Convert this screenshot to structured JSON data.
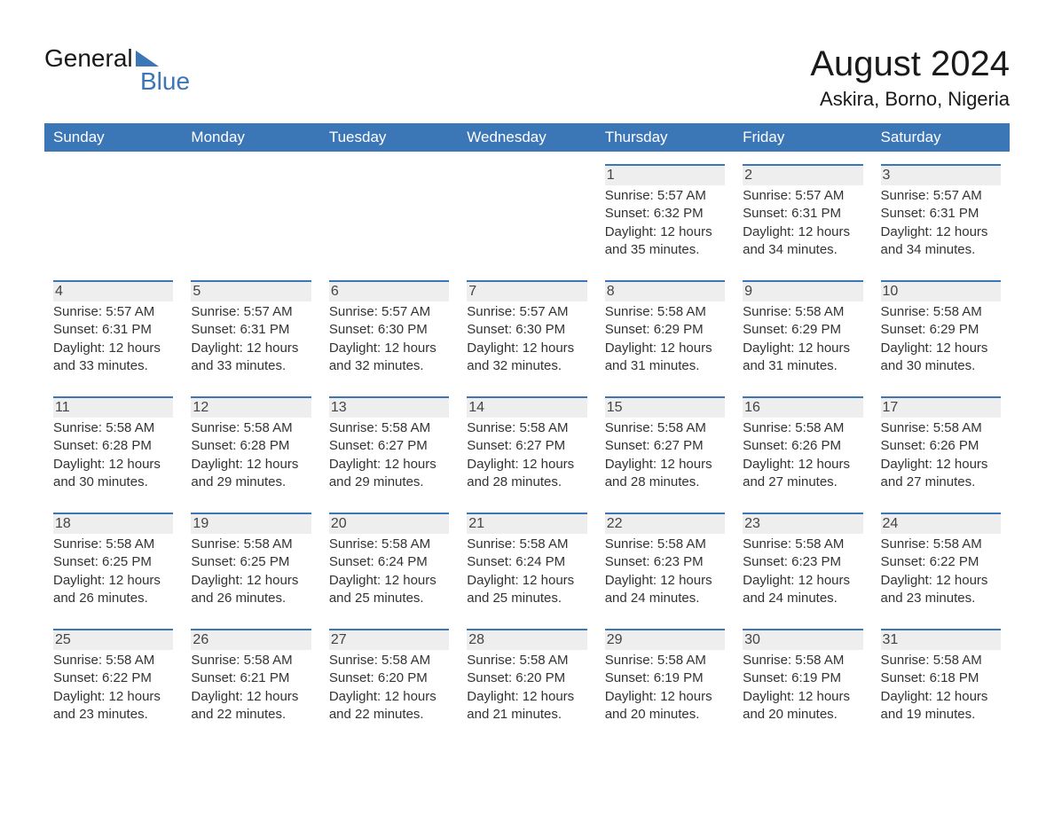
{
  "logo": {
    "line1": "General",
    "line2": "Blue"
  },
  "header": {
    "month_title": "August 2024",
    "location": "Askira, Borno, Nigeria"
  },
  "colors": {
    "brand_blue": "#3b76b6",
    "header_text": "#ffffff",
    "day_number_bg": "#eeeeee",
    "text": "#333333",
    "background": "#ffffff"
  },
  "weekdays": [
    "Sunday",
    "Monday",
    "Tuesday",
    "Wednesday",
    "Thursday",
    "Friday",
    "Saturday"
  ],
  "weeks": [
    [
      {
        "empty": true
      },
      {
        "empty": true
      },
      {
        "empty": true
      },
      {
        "empty": true
      },
      {
        "day": "1",
        "sunrise": "5:57 AM",
        "sunset": "6:32 PM",
        "daylight": "12 hours and 35 minutes."
      },
      {
        "day": "2",
        "sunrise": "5:57 AM",
        "sunset": "6:31 PM",
        "daylight": "12 hours and 34 minutes."
      },
      {
        "day": "3",
        "sunrise": "5:57 AM",
        "sunset": "6:31 PM",
        "daylight": "12 hours and 34 minutes."
      }
    ],
    [
      {
        "day": "4",
        "sunrise": "5:57 AM",
        "sunset": "6:31 PM",
        "daylight": "12 hours and 33 minutes."
      },
      {
        "day": "5",
        "sunrise": "5:57 AM",
        "sunset": "6:31 PM",
        "daylight": "12 hours and 33 minutes."
      },
      {
        "day": "6",
        "sunrise": "5:57 AM",
        "sunset": "6:30 PM",
        "daylight": "12 hours and 32 minutes."
      },
      {
        "day": "7",
        "sunrise": "5:57 AM",
        "sunset": "6:30 PM",
        "daylight": "12 hours and 32 minutes."
      },
      {
        "day": "8",
        "sunrise": "5:58 AM",
        "sunset": "6:29 PM",
        "daylight": "12 hours and 31 minutes."
      },
      {
        "day": "9",
        "sunrise": "5:58 AM",
        "sunset": "6:29 PM",
        "daylight": "12 hours and 31 minutes."
      },
      {
        "day": "10",
        "sunrise": "5:58 AM",
        "sunset": "6:29 PM",
        "daylight": "12 hours and 30 minutes."
      }
    ],
    [
      {
        "day": "11",
        "sunrise": "5:58 AM",
        "sunset": "6:28 PM",
        "daylight": "12 hours and 30 minutes."
      },
      {
        "day": "12",
        "sunrise": "5:58 AM",
        "sunset": "6:28 PM",
        "daylight": "12 hours and 29 minutes."
      },
      {
        "day": "13",
        "sunrise": "5:58 AM",
        "sunset": "6:27 PM",
        "daylight": "12 hours and 29 minutes."
      },
      {
        "day": "14",
        "sunrise": "5:58 AM",
        "sunset": "6:27 PM",
        "daylight": "12 hours and 28 minutes."
      },
      {
        "day": "15",
        "sunrise": "5:58 AM",
        "sunset": "6:27 PM",
        "daylight": "12 hours and 28 minutes."
      },
      {
        "day": "16",
        "sunrise": "5:58 AM",
        "sunset": "6:26 PM",
        "daylight": "12 hours and 27 minutes."
      },
      {
        "day": "17",
        "sunrise": "5:58 AM",
        "sunset": "6:26 PM",
        "daylight": "12 hours and 27 minutes."
      }
    ],
    [
      {
        "day": "18",
        "sunrise": "5:58 AM",
        "sunset": "6:25 PM",
        "daylight": "12 hours and 26 minutes."
      },
      {
        "day": "19",
        "sunrise": "5:58 AM",
        "sunset": "6:25 PM",
        "daylight": "12 hours and 26 minutes."
      },
      {
        "day": "20",
        "sunrise": "5:58 AM",
        "sunset": "6:24 PM",
        "daylight": "12 hours and 25 minutes."
      },
      {
        "day": "21",
        "sunrise": "5:58 AM",
        "sunset": "6:24 PM",
        "daylight": "12 hours and 25 minutes."
      },
      {
        "day": "22",
        "sunrise": "5:58 AM",
        "sunset": "6:23 PM",
        "daylight": "12 hours and 24 minutes."
      },
      {
        "day": "23",
        "sunrise": "5:58 AM",
        "sunset": "6:23 PM",
        "daylight": "12 hours and 24 minutes."
      },
      {
        "day": "24",
        "sunrise": "5:58 AM",
        "sunset": "6:22 PM",
        "daylight": "12 hours and 23 minutes."
      }
    ],
    [
      {
        "day": "25",
        "sunrise": "5:58 AM",
        "sunset": "6:22 PM",
        "daylight": "12 hours and 23 minutes."
      },
      {
        "day": "26",
        "sunrise": "5:58 AM",
        "sunset": "6:21 PM",
        "daylight": "12 hours and 22 minutes."
      },
      {
        "day": "27",
        "sunrise": "5:58 AM",
        "sunset": "6:20 PM",
        "daylight": "12 hours and 22 minutes."
      },
      {
        "day": "28",
        "sunrise": "5:58 AM",
        "sunset": "6:20 PM",
        "daylight": "12 hours and 21 minutes."
      },
      {
        "day": "29",
        "sunrise": "5:58 AM",
        "sunset": "6:19 PM",
        "daylight": "12 hours and 20 minutes."
      },
      {
        "day": "30",
        "sunrise": "5:58 AM",
        "sunset": "6:19 PM",
        "daylight": "12 hours and 20 minutes."
      },
      {
        "day": "31",
        "sunrise": "5:58 AM",
        "sunset": "6:18 PM",
        "daylight": "12 hours and 19 minutes."
      }
    ]
  ],
  "labels": {
    "sunrise": "Sunrise: ",
    "sunset": "Sunset: ",
    "daylight": "Daylight: "
  }
}
